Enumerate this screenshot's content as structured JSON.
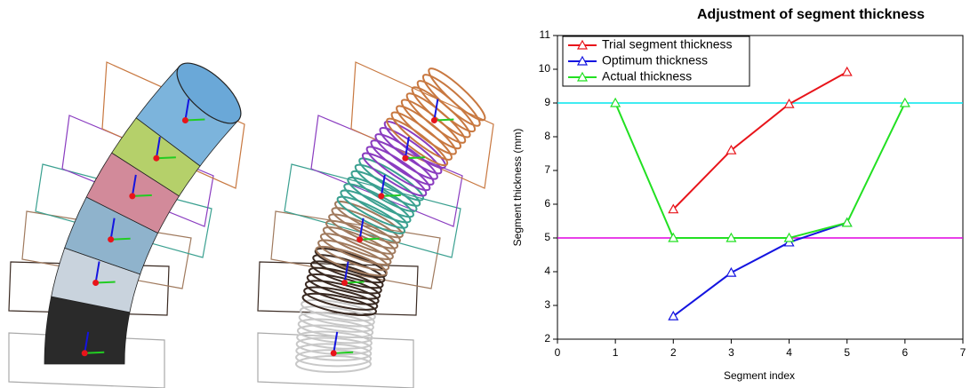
{
  "chart_data": {
    "type": "line",
    "title": "Adjustment of segment thickness",
    "x_label": "Segment index",
    "y_label": "Segment thickness (mm)",
    "xlim": [
      0,
      7
    ],
    "xticks": [
      0,
      1,
      2,
      3,
      4,
      5,
      6,
      7
    ],
    "ylim": [
      2,
      11
    ],
    "yticks": [
      2,
      3,
      4,
      5,
      6,
      7,
      8,
      9,
      10,
      11
    ],
    "legend": "top-left",
    "hlines": [
      {
        "value": 9,
        "color": "#00e5ee"
      },
      {
        "value": 5,
        "color": "#e000e0"
      }
    ],
    "series": [
      {
        "name": "Trial segment thickness",
        "color": "#e8141a",
        "x": [
          2,
          3,
          4,
          5
        ],
        "values": [
          5.85,
          7.6,
          8.97,
          9.92
        ]
      },
      {
        "name": "Optimum thickness",
        "color": "#1414e0",
        "x": [
          2,
          3,
          4,
          5
        ],
        "values": [
          2.68,
          3.97,
          4.87,
          5.45
        ]
      },
      {
        "name": "Actual thickness",
        "color": "#22e022",
        "x": [
          1,
          2,
          3,
          4,
          5,
          6
        ],
        "values": [
          9,
          5,
          5,
          5,
          5.45,
          9
        ]
      }
    ]
  }
}
